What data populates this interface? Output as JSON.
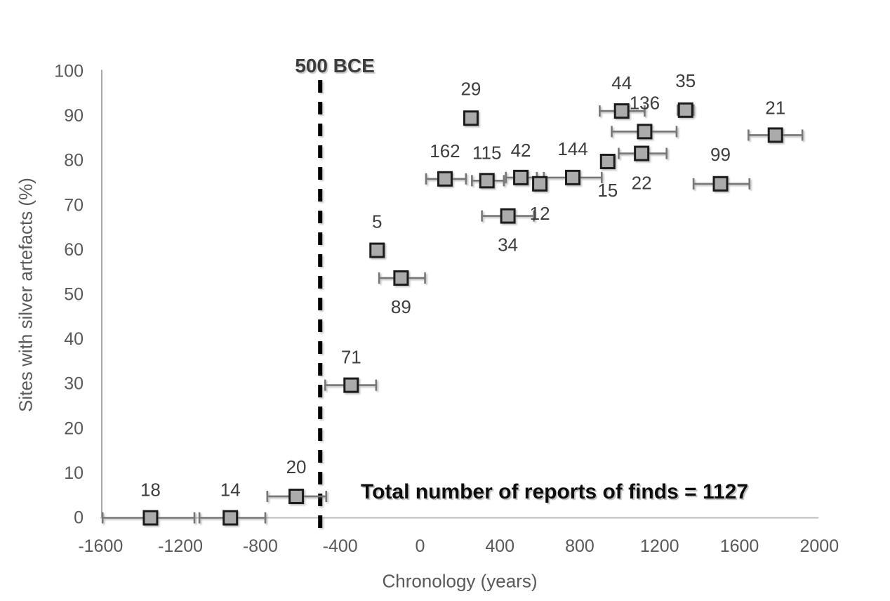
{
  "chart_data": {
    "type": "scatter",
    "title": "",
    "xlabel": "Chronology (years)",
    "ylabel": "Sites with silver artefacts (%)",
    "xlim": [
      -1600,
      2000
    ],
    "ylim": [
      0,
      100
    ],
    "x_ticks": [
      -1600,
      -1200,
      -800,
      -400,
      0,
      400,
      800,
      1200,
      1600,
      2000
    ],
    "y_ticks": [
      0,
      10,
      20,
      30,
      40,
      50,
      60,
      70,
      80,
      90,
      100
    ],
    "grid": false,
    "legend": false,
    "marker": {
      "shape": "square",
      "fill": "#ABABAB",
      "border": "#1C1C1C"
    },
    "colors": {
      "error_bar": "#777777",
      "x_axis_line": "#BDBDBD",
      "y_axis_line": "#A8A8A8",
      "tick_text": "#595959",
      "point_label_text": "#3E3E3E",
      "threshold_line": "#000000"
    },
    "threshold_line": {
      "x": -500,
      "label": "500 BCE",
      "style": "dashed"
    },
    "annotation": "Total number of reports of finds = 1127",
    "points_note": "label = number of reports of finds; x = year; y = % of sites with silver artefacts; xerr = [low, high] span of horizontal error bar in years",
    "points": [
      {
        "label": "18",
        "x": -1350,
        "y": 0,
        "xerr": [
          -1590,
          -1130
        ],
        "label_dy": -40
      },
      {
        "label": "14",
        "x": -950,
        "y": 0,
        "xerr": [
          -1105,
          -775
        ],
        "label_dy": -40
      },
      {
        "label": "20",
        "x": -620,
        "y": 4.8,
        "xerr": [
          -765,
          -470
        ],
        "label_dy": -42
      },
      {
        "label": "71",
        "x": -345,
        "y": 29.7,
        "xerr": [
          -475,
          -220
        ],
        "label_dy": -40
      },
      {
        "label": "5",
        "x": -215,
        "y": 59.9,
        "xerr": null,
        "label_dy": -41
      },
      {
        "label": "89",
        "x": -95,
        "y": 53.7,
        "xerr": [
          -205,
          25
        ],
        "label_dy": 41
      },
      {
        "label": "162",
        "x": 125,
        "y": 75.9,
        "xerr": [
          30,
          230
        ],
        "label_dy": -40
      },
      {
        "label": "29",
        "x": 255,
        "y": 89.5,
        "xerr": null,
        "label_dy": -42
      },
      {
        "label": "115",
        "x": 335,
        "y": 75.5,
        "xerr": [
          260,
          420
        ],
        "label_dy": -40
      },
      {
        "label": "34",
        "x": 440,
        "y": 67.6,
        "xerr": [
          310,
          570
        ],
        "label_dy": 41
      },
      {
        "label": "42",
        "x": 505,
        "y": 76.2,
        "xerr": [
          430,
          585
        ],
        "label_dy": -39
      },
      {
        "label": "12",
        "x": 600,
        "y": 74.8,
        "xerr": null,
        "label_dy": 42
      },
      {
        "label": "144",
        "x": 765,
        "y": 76.2,
        "xerr": [
          620,
          910
        ],
        "label_dy": -41
      },
      {
        "label": "15",
        "x": 940,
        "y": 79.8,
        "xerr": null,
        "label_dy": 41
      },
      {
        "label": "44",
        "x": 1010,
        "y": 91.1,
        "xerr": [
          900,
          1125
        ],
        "label_dy": -40
      },
      {
        "label": "136",
        "x": 1125,
        "y": 86.5,
        "xerr": [
          960,
          1285
        ],
        "label_dy": -41
      },
      {
        "label": "22",
        "x": 1110,
        "y": 81.6,
        "xerr": [
          995,
          1235
        ],
        "label_dy": 42
      },
      {
        "label": "35",
        "x": 1330,
        "y": 91.3,
        "xerr": [
          1290,
          1370
        ],
        "label_dy": -42
      },
      {
        "label": "99",
        "x": 1505,
        "y": 74.8,
        "xerr": [
          1370,
          1650
        ],
        "label_dy": -42
      },
      {
        "label": "21",
        "x": 1780,
        "y": 85.7,
        "xerr": [
          1645,
          1915
        ],
        "label_dy": -39
      }
    ]
  }
}
